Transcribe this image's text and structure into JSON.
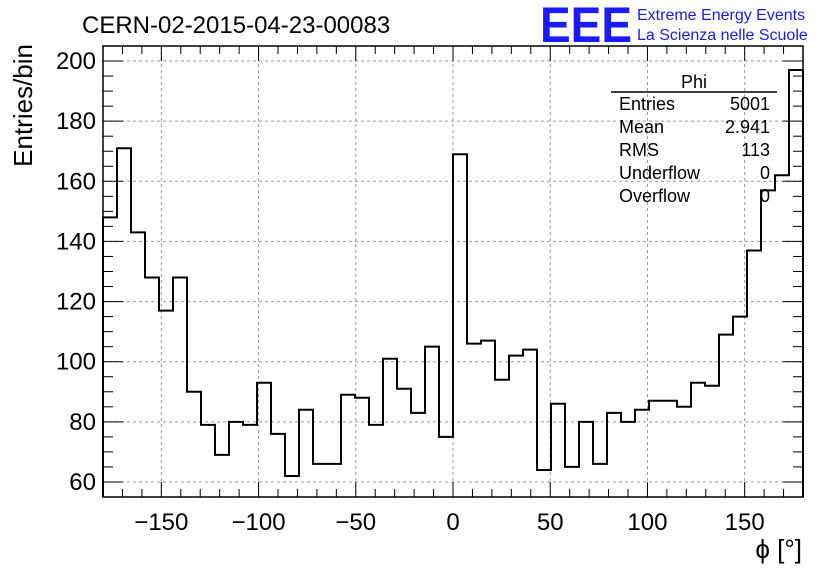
{
  "header": {
    "title": "CERN-02-2015-04-23-00083",
    "logo_text": "EEE",
    "logo_line1": "Extreme Energy Events",
    "logo_line2": "La Scienza nelle Scuole"
  },
  "stats": {
    "title": "Phi",
    "rows": [
      {
        "label": "Entries",
        "value": "5001"
      },
      {
        "label": "Mean",
        "value": "2.941"
      },
      {
        "label": "RMS",
        "value": "113"
      },
      {
        "label": "Underflow",
        "value": "0"
      },
      {
        "label": "Overflow",
        "value": "0"
      }
    ]
  },
  "colors": {
    "logo": "#1a1aff",
    "line": "#000000",
    "grid": "#9a9a9a"
  },
  "chart_data": {
    "type": "histogram",
    "xlabel": "ϕ [°]",
    "ylabel": "Entries/bin",
    "xlim": [
      -180,
      180
    ],
    "ylim": [
      55,
      205
    ],
    "bin_width": 7.2,
    "x_ticks": [
      -150,
      -100,
      -50,
      0,
      50,
      100,
      150
    ],
    "y_ticks": [
      60,
      80,
      100,
      120,
      140,
      160,
      180,
      200
    ],
    "grid": true,
    "values": [
      148,
      171,
      143,
      128,
      117,
      128,
      90,
      79,
      69,
      80,
      79,
      93,
      76,
      62,
      84,
      66,
      66,
      89,
      88,
      79,
      101,
      91,
      83,
      105,
      75,
      169,
      106,
      107,
      94,
      102,
      104,
      64,
      86,
      65,
      80,
      66,
      83,
      80,
      84,
      87,
      87,
      85,
      93,
      92,
      109,
      115,
      137,
      157,
      162,
      197
    ]
  }
}
